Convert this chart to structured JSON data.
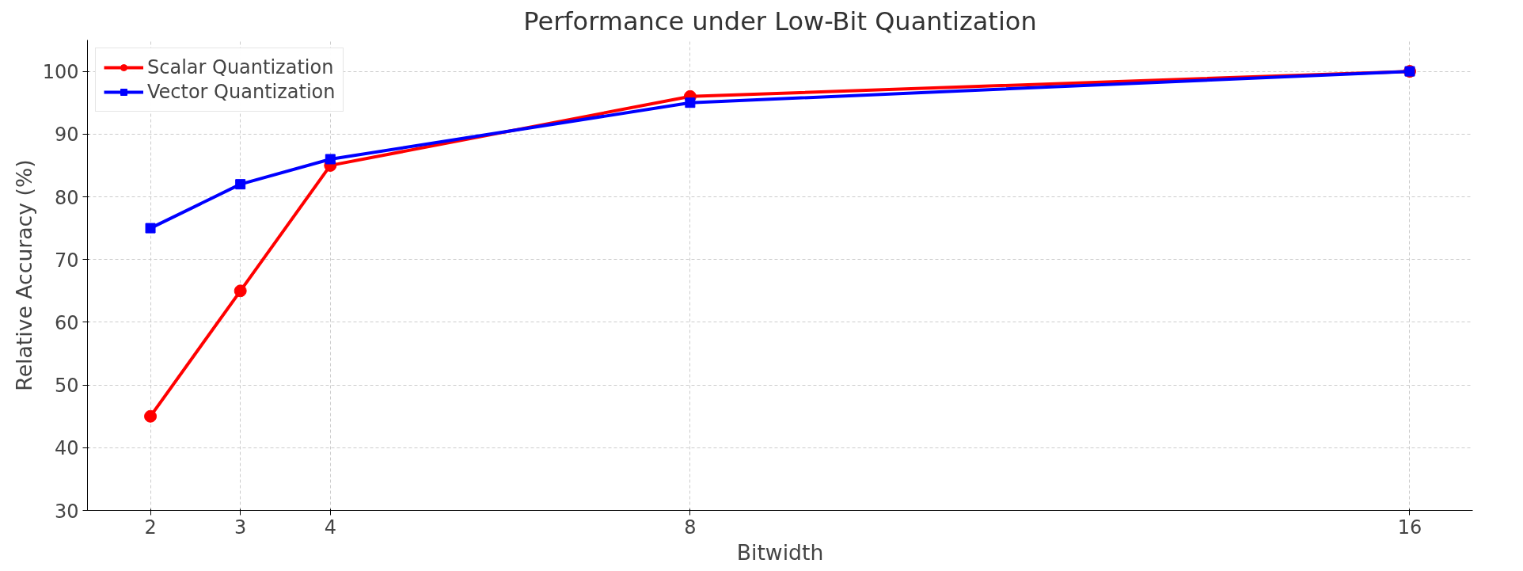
{
  "chart_data": {
    "type": "line",
    "title": "Performance under Low-Bit Quantization",
    "xlabel": "Bitwidth",
    "ylabel": "Relative Accuracy (%)",
    "x": [
      2,
      3,
      4,
      8,
      16
    ],
    "series": [
      {
        "name": "Scalar Quantization",
        "color": "#ff0000",
        "marker": "circle",
        "values": [
          45,
          65,
          85,
          96,
          100
        ]
      },
      {
        "name": "Vector Quantization",
        "color": "#0000ff",
        "marker": "square",
        "values": [
          75,
          82,
          86,
          95,
          100
        ]
      }
    ],
    "xlim": [
      1.3,
      16.7
    ],
    "xticks": [
      2,
      3,
      4,
      8,
      16
    ],
    "ylim": [
      30,
      105
    ],
    "yticks": [
      30,
      40,
      50,
      60,
      70,
      80,
      90,
      100
    ],
    "grid": true,
    "legend": "top left",
    "line_style": "solid"
  }
}
